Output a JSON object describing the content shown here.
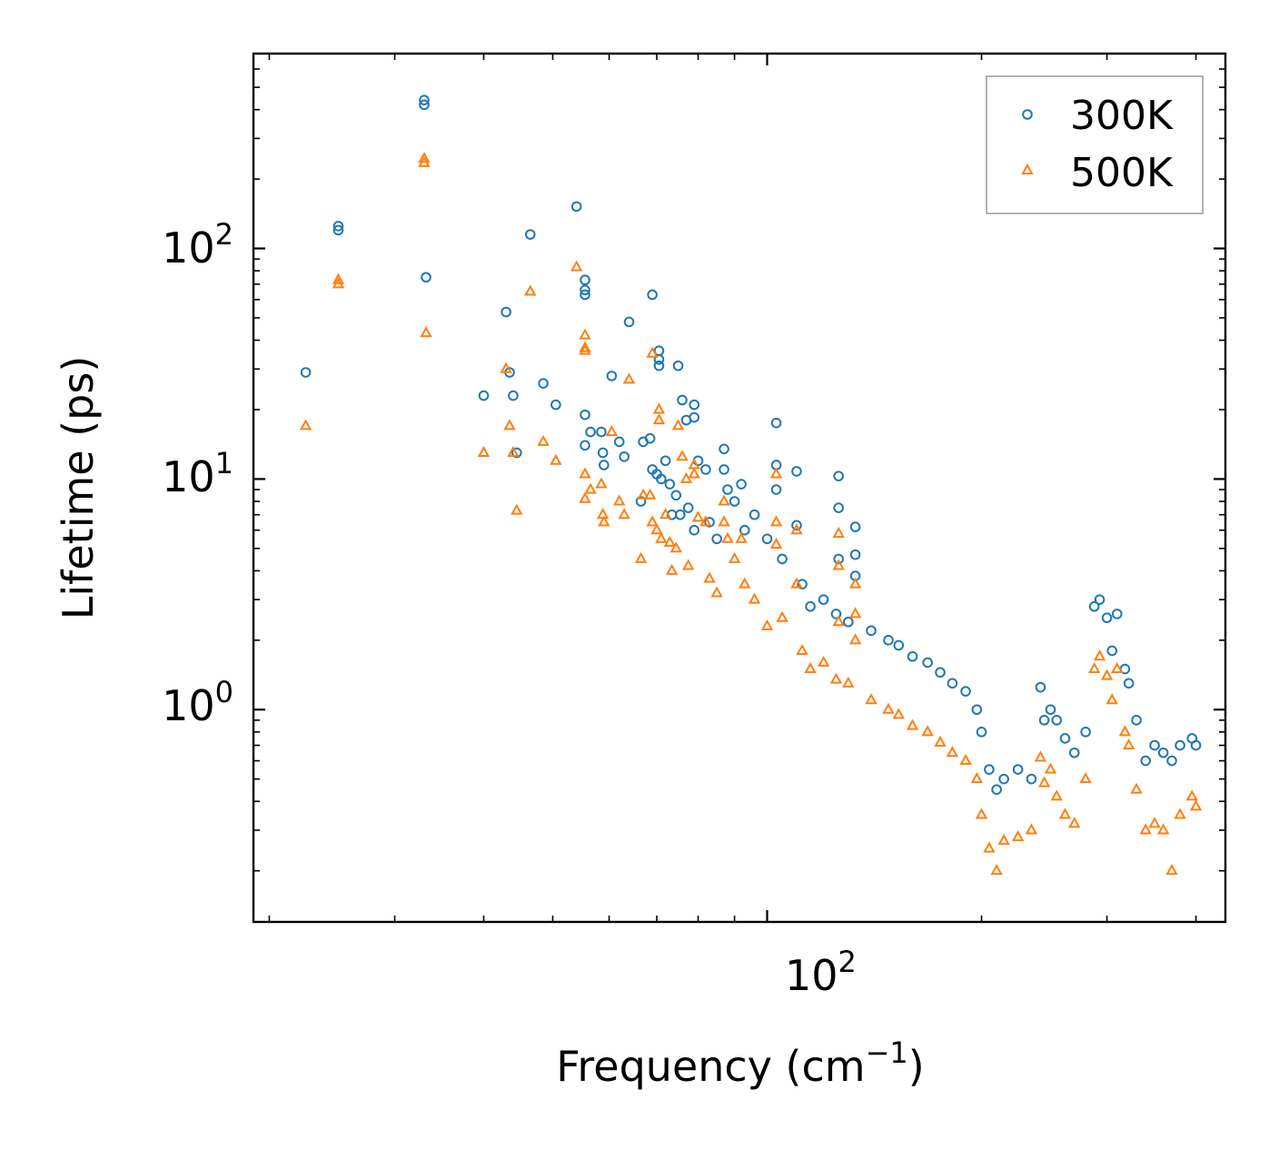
{
  "chart_data": {
    "type": "scatter",
    "xscale": "log",
    "yscale": "log",
    "xlabel": "Frequency (cm",
    "xlabel_sup": "−1",
    "xlabel_close": ")",
    "ylabel": "Lifetime (ps)",
    "xlim": [
      19,
      440
    ],
    "ylim": [
      0.12,
      700
    ],
    "xticks": [
      {
        "base": "10",
        "exp": "2",
        "value": 100
      }
    ],
    "yticks": [
      {
        "base": "10",
        "exp": "0",
        "value": 1
      },
      {
        "base": "10",
        "exp": "1",
        "value": 10
      },
      {
        "base": "10",
        "exp": "2",
        "value": 100
      }
    ],
    "legend_position": "top-right",
    "series": [
      {
        "name": "300K",
        "marker": "circle",
        "color": "#1f77b4",
        "points": [
          [
            22.5,
            29
          ],
          [
            25,
            120
          ],
          [
            25,
            125
          ],
          [
            33,
            420
          ],
          [
            33,
            440
          ],
          [
            33.2,
            75
          ],
          [
            40,
            23
          ],
          [
            43,
            53
          ],
          [
            43.5,
            29
          ],
          [
            44,
            23
          ],
          [
            44.5,
            13
          ],
          [
            46.5,
            115
          ],
          [
            48.5,
            26
          ],
          [
            50.5,
            21
          ],
          [
            54,
            152
          ],
          [
            55.5,
            73
          ],
          [
            55.5,
            66
          ],
          [
            55.5,
            63
          ],
          [
            55.5,
            19
          ],
          [
            55.5,
            14
          ],
          [
            56.5,
            16
          ],
          [
            58.5,
            16
          ],
          [
            58.8,
            13
          ],
          [
            59,
            11.5
          ],
          [
            60.5,
            28
          ],
          [
            62,
            14.5
          ],
          [
            63,
            12.5
          ],
          [
            64,
            48
          ],
          [
            66.5,
            8
          ],
          [
            67,
            14.5
          ],
          [
            68.5,
            15
          ],
          [
            69,
            63
          ],
          [
            69,
            11
          ],
          [
            70,
            10.5
          ],
          [
            70.5,
            36
          ],
          [
            70.5,
            33
          ],
          [
            70.5,
            31
          ],
          [
            71,
            10
          ],
          [
            72,
            12
          ],
          [
            73,
            9.5
          ],
          [
            73.5,
            7
          ],
          [
            74.5,
            8.5
          ],
          [
            75,
            31
          ],
          [
            75.5,
            7
          ],
          [
            76,
            22
          ],
          [
            77,
            18
          ],
          [
            77.5,
            7.5
          ],
          [
            79,
            21
          ],
          [
            79,
            18.5
          ],
          [
            79,
            6
          ],
          [
            80,
            12
          ],
          [
            82,
            11
          ],
          [
            83,
            6.5
          ],
          [
            85,
            5.5
          ],
          [
            87,
            13.5
          ],
          [
            87,
            11
          ],
          [
            88,
            9
          ],
          [
            90,
            8
          ],
          [
            92,
            9.5
          ],
          [
            93,
            6
          ],
          [
            96,
            7
          ],
          [
            100,
            5.5
          ],
          [
            103,
            17.5
          ],
          [
            103,
            11.5
          ],
          [
            103,
            9
          ],
          [
            105,
            4.5
          ],
          [
            110,
            6.3
          ],
          [
            110,
            10.8
          ],
          [
            112,
            3.5
          ],
          [
            115,
            2.8
          ],
          [
            120,
            3
          ],
          [
            125,
            2.6
          ],
          [
            126,
            10.3
          ],
          [
            126,
            7.5
          ],
          [
            126,
            4.5
          ],
          [
            130,
            2.4
          ],
          [
            133,
            6.2
          ],
          [
            133,
            4.7
          ],
          [
            133,
            3.8
          ],
          [
            140,
            2.2
          ],
          [
            148,
            2.0
          ],
          [
            153,
            1.9
          ],
          [
            160,
            1.7
          ],
          [
            168,
            1.6
          ],
          [
            175,
            1.45
          ],
          [
            182,
            1.3
          ],
          [
            190,
            1.2
          ],
          [
            197,
            1.0
          ],
          [
            200,
            0.8
          ],
          [
            205,
            0.55
          ],
          [
            210,
            0.45
          ],
          [
            215,
            0.5
          ],
          [
            225,
            0.55
          ],
          [
            235,
            0.5
          ],
          [
            242,
            1.25
          ],
          [
            245,
            0.9
          ],
          [
            250,
            1.0
          ],
          [
            255,
            0.9
          ],
          [
            262,
            0.75
          ],
          [
            270,
            0.65
          ],
          [
            280,
            0.8
          ],
          [
            288,
            2.8
          ],
          [
            293,
            3.0
          ],
          [
            300,
            2.5
          ],
          [
            305,
            1.8
          ],
          [
            310,
            2.6
          ],
          [
            318,
            1.5
          ],
          [
            322,
            1.3
          ],
          [
            330,
            0.9
          ],
          [
            340,
            0.6
          ],
          [
            350,
            0.7
          ],
          [
            360,
            0.65
          ],
          [
            370,
            0.6
          ],
          [
            380,
            0.7
          ],
          [
            395,
            0.75
          ],
          [
            400,
            0.7
          ]
        ]
      },
      {
        "name": "500K",
        "marker": "triangle",
        "color": "#ff7f0e",
        "points": [
          [
            22.5,
            17
          ],
          [
            25,
            70
          ],
          [
            25,
            73
          ],
          [
            33,
            235
          ],
          [
            33,
            245
          ],
          [
            33.2,
            43
          ],
          [
            40,
            13
          ],
          [
            43,
            30
          ],
          [
            43.5,
            17
          ],
          [
            44,
            13
          ],
          [
            44.5,
            7.3
          ],
          [
            46.5,
            65
          ],
          [
            48.5,
            14.5
          ],
          [
            50.5,
            12
          ],
          [
            54,
            83
          ],
          [
            55.5,
            42
          ],
          [
            55.5,
            37
          ],
          [
            55.5,
            36
          ],
          [
            55.5,
            10.5
          ],
          [
            55.5,
            8.2
          ],
          [
            56.5,
            9
          ],
          [
            58.5,
            9.5
          ],
          [
            58.8,
            7
          ],
          [
            59,
            6.5
          ],
          [
            60.5,
            16
          ],
          [
            62,
            8
          ],
          [
            63,
            7
          ],
          [
            64,
            27
          ],
          [
            66.5,
            4.5
          ],
          [
            67,
            8.5
          ],
          [
            68.5,
            8.5
          ],
          [
            69,
            35
          ],
          [
            69,
            6.5
          ],
          [
            70,
            6
          ],
          [
            70.5,
            20
          ],
          [
            70.5,
            18
          ],
          [
            71,
            5.5
          ],
          [
            72,
            7
          ],
          [
            73,
            5.3
          ],
          [
            73.5,
            4
          ],
          [
            74.5,
            5
          ],
          [
            75,
            17
          ],
          [
            76,
            12.5
          ],
          [
            77,
            10
          ],
          [
            77.5,
            4.2
          ],
          [
            79,
            11.5
          ],
          [
            79,
            10.5
          ],
          [
            80,
            6.8
          ],
          [
            82,
            6.5
          ],
          [
            83,
            3.7
          ],
          [
            85,
            3.2
          ],
          [
            87,
            8
          ],
          [
            87,
            6.5
          ],
          [
            88,
            5.5
          ],
          [
            90,
            4.5
          ],
          [
            92,
            5.5
          ],
          [
            93,
            3.5
          ],
          [
            96,
            3.0
          ],
          [
            100,
            2.3
          ],
          [
            103,
            10.5
          ],
          [
            103,
            6.5
          ],
          [
            103,
            5.2
          ],
          [
            105,
            2.5
          ],
          [
            110,
            3.5
          ],
          [
            110,
            6
          ],
          [
            112,
            1.8
          ],
          [
            115,
            1.5
          ],
          [
            120,
            1.6
          ],
          [
            125,
            1.35
          ],
          [
            126,
            5.8
          ],
          [
            126,
            4.2
          ],
          [
            126,
            2.4
          ],
          [
            130,
            1.3
          ],
          [
            133,
            3.5
          ],
          [
            133,
            2.6
          ],
          [
            133,
            2.0
          ],
          [
            140,
            1.1
          ],
          [
            148,
            1.0
          ],
          [
            153,
            0.95
          ],
          [
            160,
            0.85
          ],
          [
            168,
            0.8
          ],
          [
            175,
            0.72
          ],
          [
            182,
            0.65
          ],
          [
            190,
            0.6
          ],
          [
            197,
            0.5
          ],
          [
            200,
            0.35
          ],
          [
            205,
            0.25
          ],
          [
            210,
            0.2
          ],
          [
            215,
            0.27
          ],
          [
            225,
            0.28
          ],
          [
            235,
            0.3
          ],
          [
            242,
            0.62
          ],
          [
            245,
            0.48
          ],
          [
            250,
            0.55
          ],
          [
            255,
            0.42
          ],
          [
            262,
            0.35
          ],
          [
            270,
            0.32
          ],
          [
            280,
            0.5
          ],
          [
            288,
            1.5
          ],
          [
            293,
            1.7
          ],
          [
            300,
            1.4
          ],
          [
            305,
            1.1
          ],
          [
            310,
            1.5
          ],
          [
            318,
            0.8
          ],
          [
            322,
            0.7
          ],
          [
            330,
            0.45
          ],
          [
            340,
            0.3
          ],
          [
            350,
            0.32
          ],
          [
            360,
            0.3
          ],
          [
            370,
            0.2
          ],
          [
            380,
            0.35
          ],
          [
            395,
            0.42
          ],
          [
            400,
            0.38
          ]
        ]
      }
    ]
  }
}
